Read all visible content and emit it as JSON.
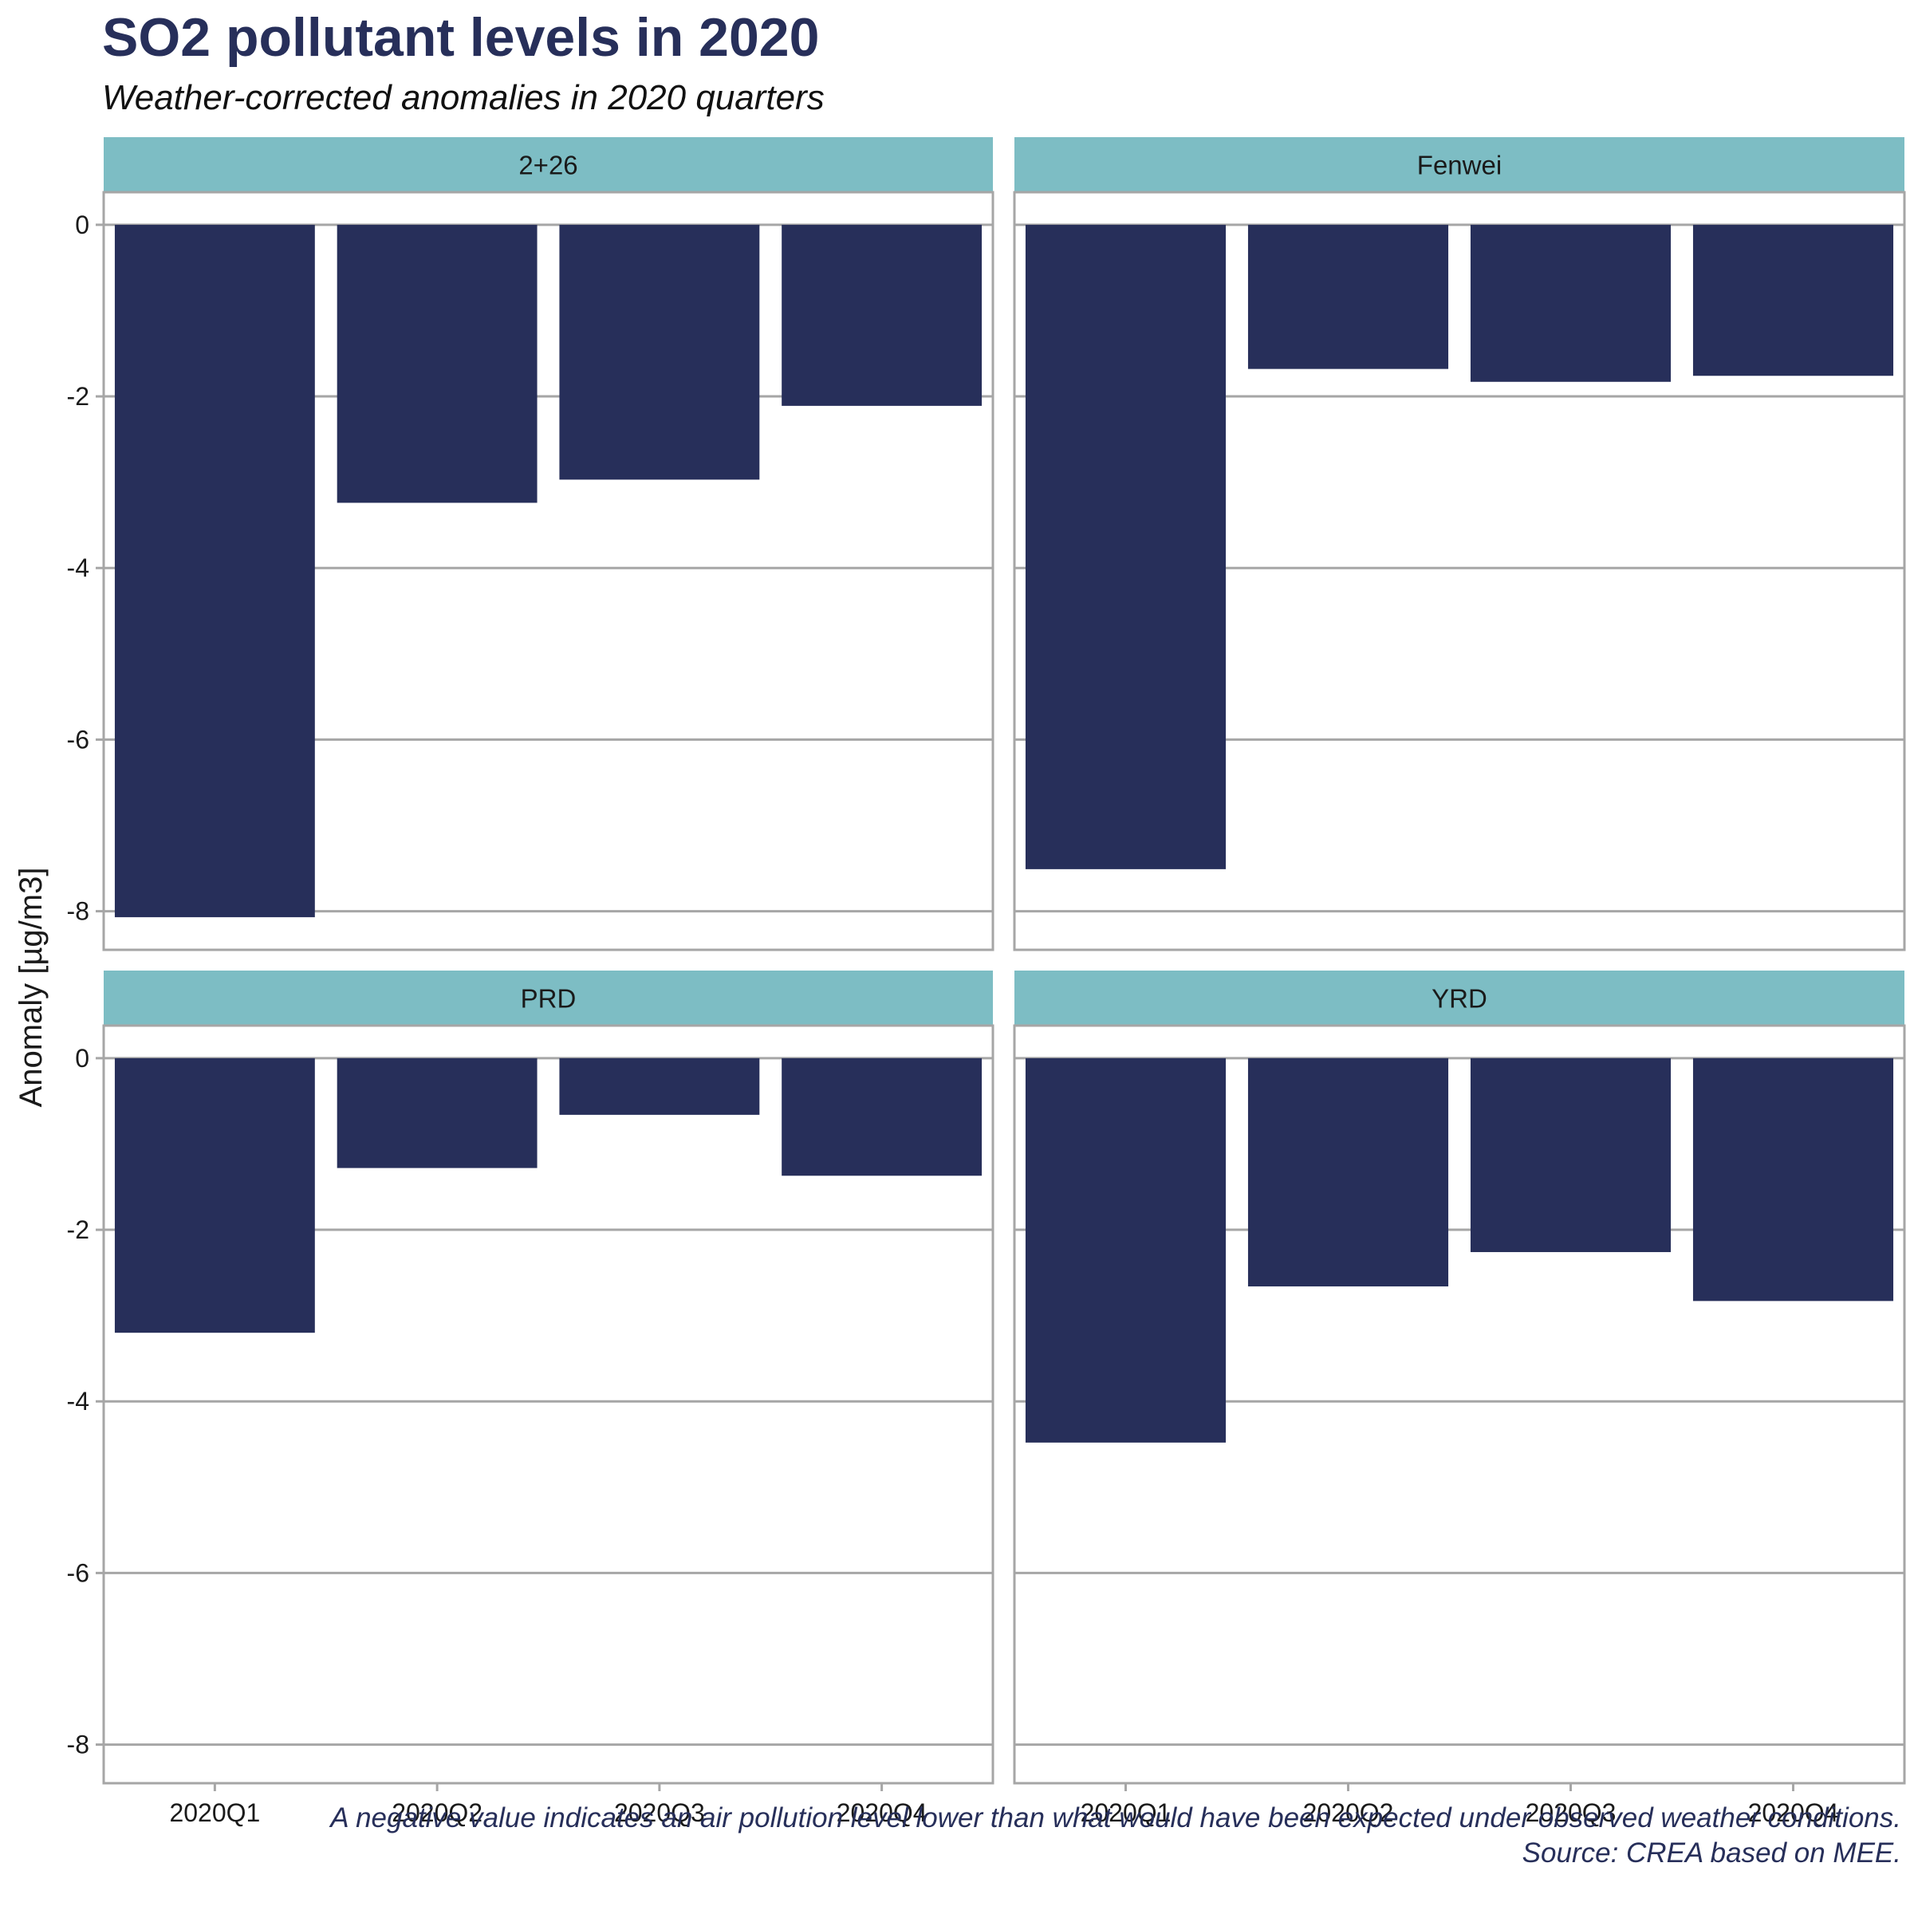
{
  "chart_data": {
    "type": "bar",
    "title": "SO2 pollutant levels in 2020",
    "subtitle": "Weather-corrected anomalies in 2020 quarters",
    "ylabel": "Anomaly [µg/m3]",
    "xlabel": "",
    "ylim": [
      -8.45,
      0.38
    ],
    "y_ticks": [
      0,
      -2,
      -4,
      -6,
      -8
    ],
    "categories": [
      "2020Q1",
      "2020Q2",
      "2020Q3",
      "2020Q4"
    ],
    "panels": [
      {
        "name": "2+26",
        "values": [
          -8.07,
          -3.24,
          -2.97,
          -2.11
        ]
      },
      {
        "name": "Fenwei",
        "values": [
          -7.51,
          -1.68,
          -1.83,
          -1.76
        ]
      },
      {
        "name": "PRD",
        "values": [
          -3.2,
          -1.28,
          -0.66,
          -1.37
        ]
      },
      {
        "name": "YRD",
        "values": [
          -4.48,
          -2.66,
          -2.26,
          -2.83
        ]
      }
    ],
    "grid": true,
    "colors": {
      "bar": "#272f5a",
      "strip": "#7dbdc4",
      "grid": "#a6a6a6",
      "title": "#272f5a"
    },
    "caption": [
      "A negative value indicates an air pollution level lower than what would have been expected under observed weather conditions.",
      "Source: CREA based on MEE."
    ]
  }
}
